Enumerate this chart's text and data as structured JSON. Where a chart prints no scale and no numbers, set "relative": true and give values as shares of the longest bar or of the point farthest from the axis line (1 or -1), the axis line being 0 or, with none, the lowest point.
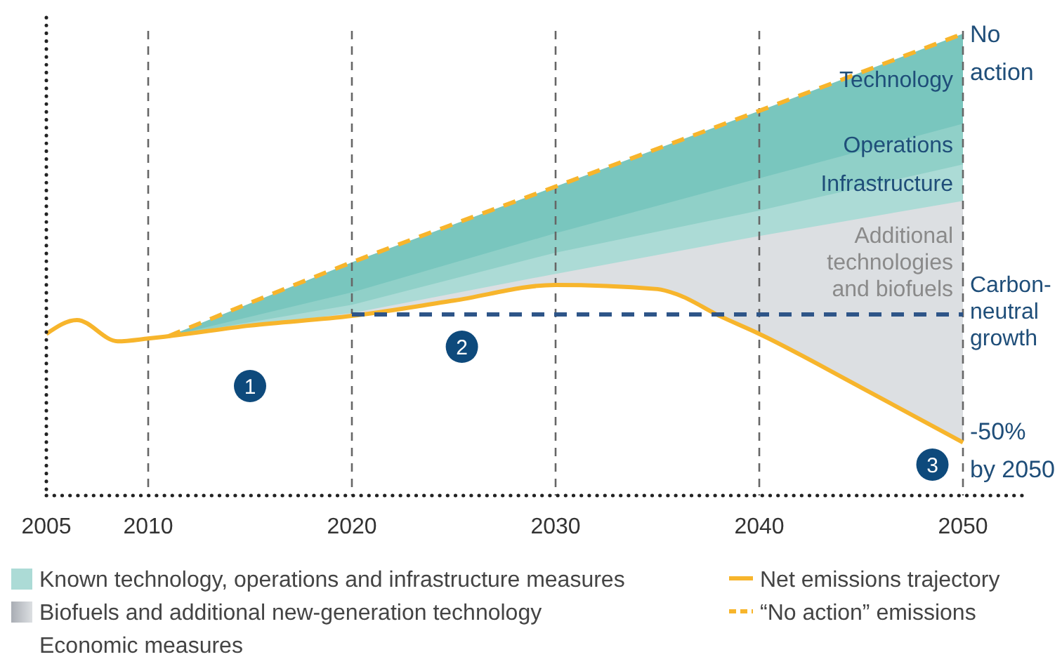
{
  "chart_data": {
    "type": "area",
    "relative": true,
    "xlim": [
      2005,
      2053
    ],
    "xticks": [
      2005,
      2010,
      2020,
      2030,
      2040,
      2050
    ],
    "grid": false,
    "legend": "bottom",
    "marker": "none",
    "series": [
      {
        "name": "Technology",
        "color": "#79c6be",
        "x": [
          2011,
          2020,
          2030,
          2040,
          2050
        ],
        "values": [
          0.345,
          0.505,
          0.669,
          0.833,
          1.0
        ]
      },
      {
        "name": "Operations",
        "color": "#90d0c8",
        "x": [
          2011,
          2020,
          2030,
          2040,
          2050
        ],
        "values": [
          0.345,
          0.44,
          0.568,
          0.687,
          0.805
        ]
      },
      {
        "name": "Infrastructure",
        "color": "#acdbd6",
        "x": [
          2011,
          2020,
          2030,
          2040,
          2050
        ],
        "values": [
          0.345,
          0.413,
          0.526,
          0.617,
          0.717
        ]
      },
      {
        "name": "Additional technologies and biofuels",
        "color": "#dcdfe2",
        "x": [
          2011,
          2020,
          2030,
          2040,
          2050
        ],
        "values": [
          0.345,
          0.395,
          0.48,
          0.562,
          0.638
        ]
      },
      {
        "name": "Net emissions trajectory",
        "type": "line",
        "line_style": "solid",
        "color": "#f7b52c",
        "x": [
          2005,
          2006.5,
          2008.5,
          2010,
          2011,
          2015,
          2020,
          2025,
          2030,
          2035,
          2036,
          2038,
          2040,
          2045,
          2050
        ],
        "values": [
          0.35,
          0.38,
          0.334,
          0.34,
          0.345,
          0.368,
          0.389,
          0.422,
          0.456,
          0.447,
          0.435,
          0.39,
          0.35,
          0.234,
          0.115
        ]
      },
      {
        "name": "“No action” emissions",
        "type": "line",
        "line_style": "dashed",
        "color": "#f7b52c",
        "x": [
          2011,
          2020,
          2030,
          2040,
          2050
        ],
        "values": [
          0.345,
          0.505,
          0.669,
          0.833,
          1.0
        ]
      },
      {
        "name": "Carbon-neutral growth",
        "type": "line",
        "line_style": "dashed",
        "color": "#2e5588",
        "x": [
          2020,
          2050
        ],
        "values": [
          0.392,
          0.392
        ]
      }
    ],
    "ref_lines": [
      {
        "axis": "x",
        "value": 2010,
        "color": "#666666",
        "line_style": "dashed"
      },
      {
        "axis": "x",
        "value": 2020,
        "color": "#666666",
        "line_style": "dashed"
      },
      {
        "axis": "x",
        "value": 2030,
        "color": "#666666",
        "line_style": "dashed"
      },
      {
        "axis": "x",
        "value": 2040,
        "color": "#666666",
        "line_style": "dashed"
      },
      {
        "axis": "x",
        "value": 2050,
        "color": "#666666",
        "line_style": "dashed"
      }
    ],
    "annotations": [
      "Known technology, operations and infrastructure measures",
      "Biofuels and additional new-generation technology",
      "Economic measures",
      {
        "text": "No action",
        "x": 2050,
        "y": 1.0
      },
      {
        "text": "-50% by 2050",
        "x": 2050,
        "y": 0.115
      },
      {
        "text": "1",
        "x": 2015,
        "y": 0.237
      },
      {
        "text": "2",
        "x": 2025.4,
        "y": 0.322
      },
      {
        "text": "3",
        "x": 2048.5,
        "y": 0.067
      }
    ]
  }
}
